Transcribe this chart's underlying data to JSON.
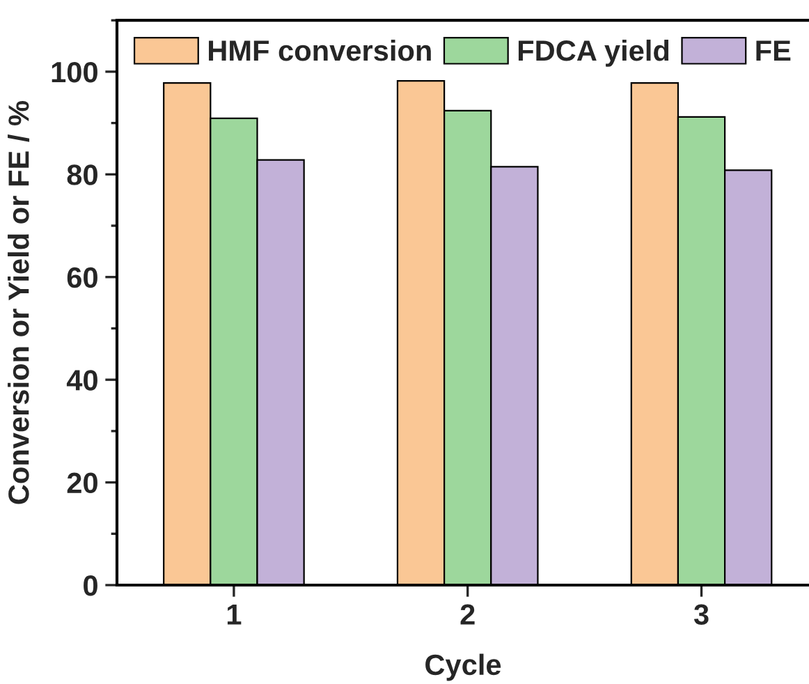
{
  "chart_data": {
    "type": "bar",
    "xlabel": "Cycle",
    "ylabel": "Conversion or Yield or FE / %",
    "categories": [
      "1",
      "2",
      "3"
    ],
    "series": [
      {
        "name": "HMF conversion",
        "color": "#fac795",
        "values": [
          97.8,
          98.2,
          97.8
        ]
      },
      {
        "name": "FDCA yield",
        "color": "#9dd79c",
        "values": [
          90.9,
          92.4,
          91.2
        ]
      },
      {
        "name": "FE",
        "color": "#c2b1d8",
        "values": [
          82.8,
          81.5,
          80.8
        ]
      }
    ],
    "ylim": [
      0,
      110
    ],
    "yticks": [
      0,
      20,
      40,
      60,
      80,
      100
    ],
    "grid": false,
    "legend": "top"
  }
}
